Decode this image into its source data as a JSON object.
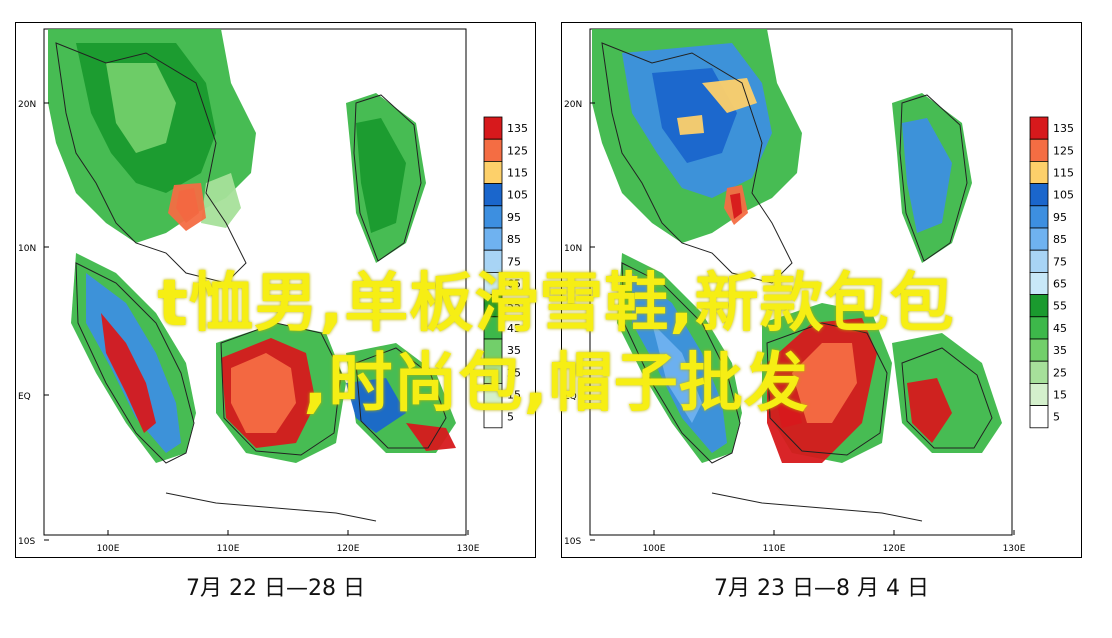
{
  "maps": [
    {
      "caption": "7月 22 日—28 日",
      "lat_labels": [
        "20N",
        "10N",
        "EQ",
        "10S"
      ],
      "lon_labels": [
        "100E",
        "110E",
        "120E",
        "130E"
      ],
      "legend_values": [
        "135",
        "125",
        "115",
        "105",
        "95",
        "85",
        "75",
        "65",
        "55",
        "45",
        "35",
        "25",
        "15",
        "5"
      ]
    },
    {
      "caption": "7月 23 日—8 月 4 日",
      "lat_labels": [
        "20N",
        "10N",
        "EQ",
        "10S"
      ],
      "lon_labels": [
        "100E",
        "110E",
        "120E",
        "130E"
      ],
      "legend_values": [
        "135",
        "125",
        "115",
        "105",
        "95",
        "85",
        "75",
        "65",
        "55",
        "45",
        "35",
        "25",
        "15",
        "5"
      ]
    }
  ],
  "legend_colors": [
    "#d7191c",
    "#f46d43",
    "#fdd06a",
    "#1a66cc",
    "#3d8fe0",
    "#6fb2f0",
    "#a8d4f5",
    "#c8e8f8",
    "#1a9a2e",
    "#3db84a",
    "#72cf6a",
    "#a6e09a",
    "#d4f0cc",
    "#ffffff"
  ],
  "overlay": {
    "line1": "t恤男,单板滑雪鞋,新款包包",
    "line2": ",时尚包,帽子批发"
  }
}
